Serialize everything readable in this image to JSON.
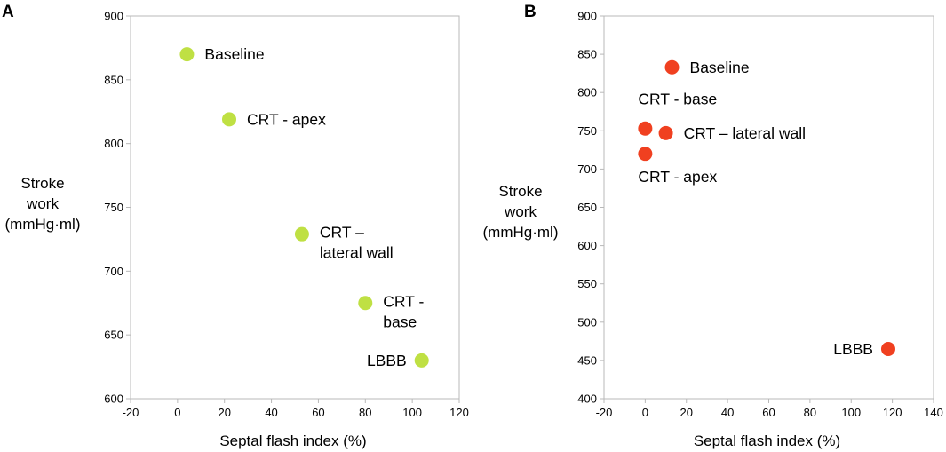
{
  "chart_data": [
    {
      "panel": "A",
      "type": "scatter",
      "xlabel": "Septal flash index (%)",
      "ylabel_lines": [
        "Stroke",
        "work",
        "(mmHg·ml)"
      ],
      "xlim": [
        -20,
        120
      ],
      "ylim": [
        600,
        900
      ],
      "xticks": [
        -20,
        0,
        20,
        40,
        60,
        80,
        100,
        120
      ],
      "yticks": [
        600,
        650,
        700,
        750,
        800,
        850,
        900
      ],
      "color": "#bfe043",
      "points": [
        {
          "x": 4,
          "y": 870,
          "label_lines": [
            "Baseline"
          ],
          "label_pos": "right"
        },
        {
          "x": 22,
          "y": 819,
          "label_lines": [
            "CRT - apex"
          ],
          "label_pos": "right"
        },
        {
          "x": 53,
          "y": 729,
          "label_lines": [
            "CRT –",
            "lateral wall"
          ],
          "label_pos": "right"
        },
        {
          "x": 80,
          "y": 675,
          "label_lines": [
            "CRT -",
            "base"
          ],
          "label_pos": "right"
        },
        {
          "x": 104,
          "y": 630,
          "label_lines": [
            "LBBB"
          ],
          "label_pos": "left"
        }
      ]
    },
    {
      "panel": "B",
      "type": "scatter",
      "xlabel": "Septal flash index (%)",
      "ylabel_lines": [
        "Stroke",
        "work",
        "(mmHg·ml)"
      ],
      "xlim": [
        -20,
        140
      ],
      "ylim": [
        400,
        900
      ],
      "xticks": [
        -20,
        0,
        20,
        40,
        60,
        80,
        100,
        120,
        140
      ],
      "yticks": [
        400,
        450,
        500,
        550,
        600,
        650,
        700,
        750,
        800,
        850,
        900
      ],
      "color": "#f04020",
      "points": [
        {
          "x": 13,
          "y": 833,
          "label_lines": [
            "Baseline"
          ],
          "label_pos": "right"
        },
        {
          "x": 0,
          "y": 753,
          "label_lines": [
            "CRT - base"
          ],
          "label_pos": "above"
        },
        {
          "x": 10,
          "y": 747,
          "label_lines": [
            "CRT – lateral wall"
          ],
          "label_pos": "right"
        },
        {
          "x": 0,
          "y": 720,
          "label_lines": [
            "CRT - apex"
          ],
          "label_pos": "below"
        },
        {
          "x": 118,
          "y": 465,
          "label_lines": [
            "LBBB"
          ],
          "label_pos": "left"
        }
      ]
    }
  ]
}
